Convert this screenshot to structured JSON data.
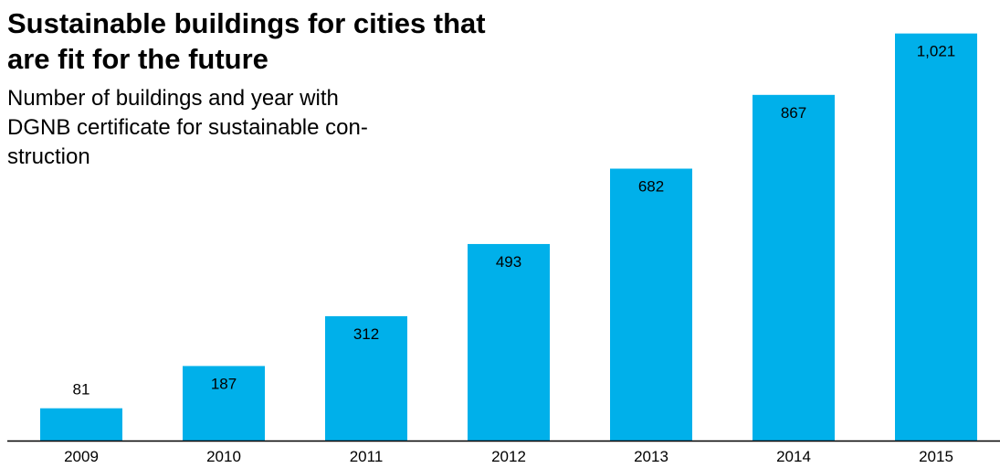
{
  "chart_data": {
    "type": "bar",
    "title": "Sustainable buildings for cities that are fit for the future",
    "subtitle": "Number of buildings and year with DGNB certificate for sustainable con-struction",
    "subtitle_lines": [
      "Number of buildings and year with",
      "DGNB certificate for sustainable con-",
      "struction"
    ],
    "categories": [
      "2009",
      "2010",
      "2011",
      "2012",
      "2013",
      "2014",
      "2015"
    ],
    "values": [
      81,
      187,
      312,
      493,
      682,
      867,
      1021
    ],
    "value_labels": [
      "81",
      "187",
      "312",
      "493",
      "682",
      "867",
      "1,021"
    ],
    "xlabel": "",
    "ylabel": "",
    "ylim": [
      0,
      1105
    ],
    "grid": false,
    "bar_color": "#00b0ea",
    "axis_color": "#000000"
  }
}
